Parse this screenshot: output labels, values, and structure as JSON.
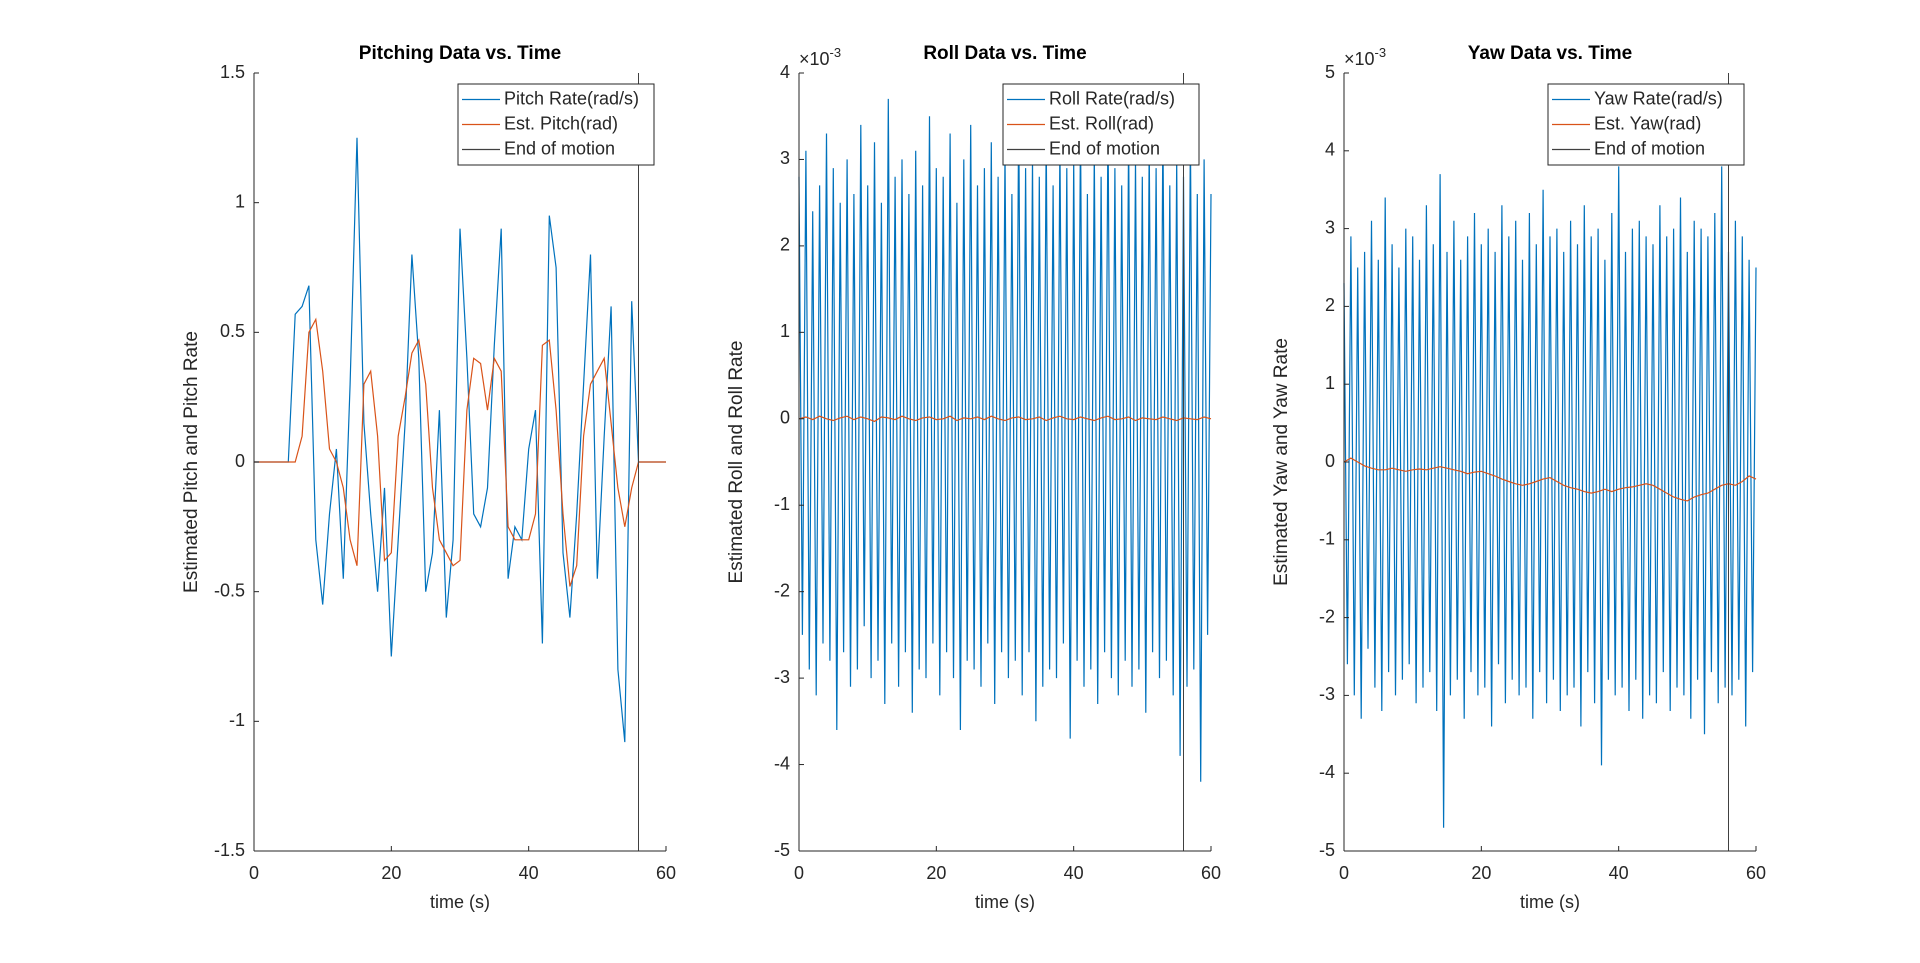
{
  "chart_data": [
    {
      "type": "line",
      "title": "Pitching Data vs. Time",
      "x_label": "time (s)",
      "y_label": "Estimated Pitch and Pitch Rate",
      "xlim": [
        0,
        60
      ],
      "xticks": [
        0,
        20,
        40,
        60
      ],
      "ylim": [
        -1.5,
        1.5
      ],
      "yticks": [
        -1.5,
        -1,
        -0.5,
        0,
        0.5,
        1,
        1.5
      ],
      "legend": "upper right",
      "x": [
        0,
        1,
        2,
        3,
        4,
        5,
        6,
        7,
        8,
        9,
        10,
        11,
        12,
        13,
        14,
        15,
        16,
        17,
        18,
        19,
        20,
        21,
        22,
        23,
        24,
        25,
        26,
        27,
        28,
        29,
        30,
        31,
        32,
        33,
        34,
        35,
        36,
        37,
        38,
        39,
        40,
        41,
        42,
        43,
        44,
        45,
        46,
        47,
        48,
        49,
        50,
        51,
        52,
        53,
        54,
        55,
        56,
        57,
        58,
        59,
        60
      ],
      "series": [
        {
          "name": "Pitch Rate(rad/s)",
          "color": "#0072BD",
          "values": [
            0,
            0,
            0,
            0,
            0,
            0,
            0.57,
            0.6,
            0.68,
            -0.3,
            -0.55,
            -0.2,
            0.05,
            -0.45,
            0.3,
            1.25,
            0.15,
            -0.2,
            -0.5,
            -0.1,
            -0.75,
            -0.3,
            0.15,
            0.8,
            0.4,
            -0.5,
            -0.35,
            0.2,
            -0.6,
            -0.3,
            0.9,
            0.4,
            -0.2,
            -0.25,
            -0.1,
            0.45,
            0.9,
            -0.45,
            -0.25,
            -0.3,
            0.05,
            0.2,
            -0.7,
            0.95,
            0.75,
            -0.35,
            -0.6,
            -0.2,
            0.3,
            0.8,
            -0.45,
            0.1,
            0.6,
            -0.8,
            -1.08,
            0.62,
            0,
            0,
            0,
            0,
            0
          ]
        },
        {
          "name": "Est. Pitch(rad)",
          "color": "#D95319",
          "values": [
            0,
            0,
            0,
            0,
            0,
            0,
            0,
            0.1,
            0.5,
            0.55,
            0.35,
            0.05,
            0,
            -0.1,
            -0.3,
            -0.4,
            0.3,
            0.35,
            0.1,
            -0.38,
            -0.35,
            0.1,
            0.25,
            0.42,
            0.47,
            0.3,
            -0.1,
            -0.3,
            -0.35,
            -0.4,
            -0.38,
            0.2,
            0.4,
            0.38,
            0.2,
            0.4,
            0.35,
            -0.25,
            -0.3,
            -0.3,
            -0.3,
            -0.2,
            0.45,
            0.47,
            0.2,
            -0.2,
            -0.48,
            -0.4,
            0.1,
            0.3,
            0.35,
            0.4,
            0.15,
            -0.1,
            -0.25,
            -0.1,
            0,
            0,
            0,
            0,
            0
          ]
        },
        {
          "name": "End of motion",
          "color": "#404040",
          "x": [
            56,
            56
          ],
          "values": [
            -1.5,
            1.5
          ]
        }
      ]
    },
    {
      "type": "line",
      "title": "Roll Data vs. Time",
      "x_label": "time (s)",
      "y_label": "Estimated Roll and Roll Rate",
      "exponent_label": {
        "base": "×10",
        "power": "-3"
      },
      "xlim": [
        0,
        60
      ],
      "xticks": [
        0,
        20,
        40,
        60
      ],
      "ylim": [
        -5,
        4
      ],
      "yticks": [
        -5,
        -4,
        -3,
        -2,
        -1,
        0,
        1,
        2,
        3,
        4
      ],
      "legend": "upper right",
      "x": [
        0,
        1,
        2,
        3,
        4,
        5,
        6,
        7,
        8,
        9,
        10,
        11,
        12,
        13,
        14,
        15,
        16,
        17,
        18,
        19,
        20,
        21,
        22,
        23,
        24,
        25,
        26,
        27,
        28,
        29,
        30,
        31,
        32,
        33,
        34,
        35,
        36,
        37,
        38,
        39,
        40,
        41,
        42,
        43,
        44,
        45,
        46,
        47,
        48,
        49,
        50,
        51,
        52,
        53,
        54,
        55,
        56,
        57,
        58,
        59,
        60
      ],
      "series": [
        {
          "name": "Roll Rate(rad/s)",
          "color": "#0072BD",
          "x": [
            0,
            0.5,
            1,
            1.5,
            2,
            2.5,
            3,
            3.5,
            4,
            4.5,
            5,
            5.5,
            6,
            6.5,
            7,
            7.5,
            8,
            8.5,
            9,
            9.5,
            10,
            10.5,
            11,
            11.5,
            12,
            12.5,
            13,
            13.5,
            14,
            14.5,
            15,
            15.5,
            16,
            16.5,
            17,
            17.5,
            18,
            18.5,
            19,
            19.5,
            20,
            20.5,
            21,
            21.5,
            22,
            22.5,
            23,
            23.5,
            24,
            24.5,
            25,
            25.5,
            26,
            26.5,
            27,
            27.5,
            28,
            28.5,
            29,
            29.5,
            30,
            30.5,
            31,
            31.5,
            32,
            32.5,
            33,
            33.5,
            34,
            34.5,
            35,
            35.5,
            36,
            36.5,
            37,
            37.5,
            38,
            38.5,
            39,
            39.5,
            40,
            40.5,
            41,
            41.5,
            42,
            42.5,
            43,
            43.5,
            44,
            44.5,
            45,
            45.5,
            46,
            46.5,
            47,
            47.5,
            48,
            48.5,
            49,
            49.5,
            50,
            50.5,
            51,
            51.5,
            52,
            52.5,
            53,
            53.5,
            54,
            54.5,
            55,
            55.5,
            56,
            56.5,
            57,
            57.5,
            58,
            58.5,
            59,
            59.5,
            60
          ],
          "values": [
            2.8,
            -2.5,
            3.1,
            -2.9,
            2.4,
            -3.2,
            2.7,
            -2.6,
            3.3,
            -2.8,
            2.9,
            -3.6,
            2.5,
            -2.7,
            3.0,
            -3.1,
            2.6,
            -2.9,
            3.4,
            -2.4,
            2.7,
            -3.0,
            3.2,
            -2.8,
            2.5,
            -3.3,
            3.7,
            -2.6,
            2.8,
            -3.1,
            3.0,
            -2.7,
            2.6,
            -3.4,
            3.1,
            -2.9,
            2.7,
            -3.0,
            3.5,
            -2.6,
            2.9,
            -3.2,
            2.8,
            -2.7,
            3.3,
            -3.0,
            2.5,
            -3.6,
            3.0,
            -2.8,
            3.4,
            -2.9,
            2.7,
            -3.1,
            2.9,
            -2.6,
            3.2,
            -3.3,
            2.8,
            -2.7,
            3.1,
            -3.0,
            2.6,
            -2.8,
            3.6,
            -3.2,
            2.9,
            -2.7,
            3.0,
            -3.5,
            2.8,
            -3.1,
            3.3,
            -2.9,
            2.7,
            -3.0,
            3.2,
            -2.6,
            2.9,
            -3.7,
            3.0,
            -2.8,
            3.4,
            -3.1,
            2.6,
            -2.9,
            3.1,
            -3.3,
            2.8,
            -2.7,
            3.5,
            -3.0,
            2.9,
            -3.2,
            2.7,
            -2.8,
            3.3,
            -3.1,
            3.0,
            -2.9,
            2.8,
            -3.4,
            3.2,
            -2.7,
            2.9,
            -3.0,
            3.4,
            -2.8,
            2.7,
            -3.2,
            3.0,
            -3.9,
            2.8,
            -3.1,
            3.3,
            -2.9,
            2.6,
            -4.2,
            3.0,
            -2.5,
            2.6
          ]
        },
        {
          "name": "Est. Roll(rad)",
          "color": "#D95319",
          "values": [
            0,
            0.02,
            -0.01,
            0.03,
            0,
            -0.02,
            0.01,
            0.03,
            -0.01,
            0.02,
            0,
            -0.03,
            0.02,
            0.01,
            -0.01,
            0.03,
            0,
            -0.02,
            0.01,
            0.02,
            -0.01,
            0,
            0.03,
            -0.02,
            0.01,
            0,
            0.02,
            -0.01,
            0.03,
            0,
            -0.02,
            0.01,
            0.02,
            -0.01,
            0,
            0.02,
            -0.02,
            0.01,
            0.03,
            0,
            -0.01,
            0.02,
            0,
            -0.02,
            0.01,
            0.03,
            -0.01,
            0,
            0.02,
            -0.02,
            0.01,
            0,
            -0.01,
            0.02,
            0,
            -0.02,
            0.01,
            0,
            -0.01,
            0.02,
            0
          ]
        },
        {
          "name": "End of motion",
          "color": "#404040",
          "x": [
            56,
            56
          ],
          "values": [
            -5,
            4
          ]
        }
      ]
    },
    {
      "type": "line",
      "title": "Yaw Data vs. Time",
      "x_label": "time (s)",
      "y_label": "Estimated Yaw and Yaw Rate",
      "exponent_label": {
        "base": "×10",
        "power": "-3"
      },
      "xlim": [
        0,
        60
      ],
      "xticks": [
        0,
        20,
        40,
        60
      ],
      "ylim": [
        -5,
        5
      ],
      "yticks": [
        -5,
        -4,
        -3,
        -2,
        -1,
        0,
        1,
        2,
        3,
        4,
        5
      ],
      "legend": "upper right",
      "x": [
        0,
        1,
        2,
        3,
        4,
        5,
        6,
        7,
        8,
        9,
        10,
        11,
        12,
        13,
        14,
        15,
        16,
        17,
        18,
        19,
        20,
        21,
        22,
        23,
        24,
        25,
        26,
        27,
        28,
        29,
        30,
        31,
        32,
        33,
        34,
        35,
        36,
        37,
        38,
        39,
        40,
        41,
        42,
        43,
        44,
        45,
        46,
        47,
        48,
        49,
        50,
        51,
        52,
        53,
        54,
        55,
        56,
        57,
        58,
        59,
        60
      ],
      "series": [
        {
          "name": "Yaw Rate(rad/s)",
          "color": "#0072BD",
          "x": [
            0,
            0.5,
            1,
            1.5,
            2,
            2.5,
            3,
            3.5,
            4,
            4.5,
            5,
            5.5,
            6,
            6.5,
            7,
            7.5,
            8,
            8.5,
            9,
            9.5,
            10,
            10.5,
            11,
            11.5,
            12,
            12.5,
            13,
            13.5,
            14,
            14.5,
            15,
            15.5,
            16,
            16.5,
            17,
            17.5,
            18,
            18.5,
            19,
            19.5,
            20,
            20.5,
            21,
            21.5,
            22,
            22.5,
            23,
            23.5,
            24,
            24.5,
            25,
            25.5,
            26,
            26.5,
            27,
            27.5,
            28,
            28.5,
            29,
            29.5,
            30,
            30.5,
            31,
            31.5,
            32,
            32.5,
            33,
            33.5,
            34,
            34.5,
            35,
            35.5,
            36,
            36.5,
            37,
            37.5,
            38,
            38.5,
            39,
            39.5,
            40,
            40.5,
            41,
            41.5,
            42,
            42.5,
            43,
            43.5,
            44,
            44.5,
            45,
            45.5,
            46,
            46.5,
            47,
            47.5,
            48,
            48.5,
            49,
            49.5,
            50,
            50.5,
            51,
            51.5,
            52,
            52.5,
            53,
            53.5,
            54,
            54.5,
            55,
            55.5,
            56,
            56.5,
            57,
            57.5,
            58,
            58.5,
            59,
            59.5,
            60
          ],
          "values": [
            2.3,
            -2.6,
            2.9,
            -3.0,
            2.5,
            -3.3,
            2.7,
            -2.4,
            3.1,
            -2.9,
            2.6,
            -3.2,
            3.4,
            -2.7,
            2.8,
            -3.0,
            2.5,
            -2.8,
            3.0,
            -2.6,
            2.9,
            -3.1,
            2.6,
            -2.9,
            3.3,
            -2.7,
            2.8,
            -3.2,
            3.7,
            -4.7,
            2.7,
            -3.0,
            3.1,
            -2.8,
            2.6,
            -3.3,
            2.9,
            -2.7,
            3.2,
            -3.0,
            2.8,
            -2.9,
            3.0,
            -3.4,
            2.7,
            -2.6,
            3.3,
            -3.1,
            2.9,
            -2.8,
            3.1,
            -3.0,
            2.6,
            -2.9,
            3.2,
            -3.3,
            2.8,
            -2.7,
            3.5,
            -3.1,
            2.9,
            -2.8,
            3.0,
            -3.2,
            2.7,
            -3.0,
            3.1,
            -2.9,
            2.8,
            -3.4,
            3.3,
            -2.7,
            2.9,
            -3.1,
            3.0,
            -3.9,
            2.6,
            -2.8,
            3.2,
            -3.0,
            3.8,
            -2.9,
            2.7,
            -3.2,
            3.0,
            -2.8,
            3.1,
            -3.3,
            2.9,
            -3.0,
            2.8,
            -3.1,
            3.3,
            -2.7,
            2.9,
            -3.2,
            3.0,
            -2.9,
            3.4,
            -3.0,
            2.7,
            -3.3,
            3.1,
            -2.8,
            3.0,
            -3.5,
            2.9,
            -2.7,
            3.2,
            -3.1,
            3.8,
            -2.9,
            2.7,
            -3.0,
            3.1,
            -2.8,
            2.9,
            -3.4,
            2.6,
            -2.7,
            2.5
          ]
        },
        {
          "name": "Est. Yaw(rad)",
          "color": "#D95319",
          "values": [
            0,
            0.05,
            0,
            -0.05,
            -0.08,
            -0.1,
            -0.1,
            -0.08,
            -0.1,
            -0.12,
            -0.1,
            -0.09,
            -0.1,
            -0.08,
            -0.06,
            -0.08,
            -0.1,
            -0.12,
            -0.15,
            -0.13,
            -0.12,
            -0.15,
            -0.18,
            -0.22,
            -0.25,
            -0.28,
            -0.3,
            -0.28,
            -0.25,
            -0.22,
            -0.2,
            -0.25,
            -0.3,
            -0.33,
            -0.35,
            -0.38,
            -0.4,
            -0.38,
            -0.35,
            -0.38,
            -0.35,
            -0.33,
            -0.32,
            -0.3,
            -0.28,
            -0.3,
            -0.35,
            -0.4,
            -0.45,
            -0.48,
            -0.5,
            -0.45,
            -0.42,
            -0.4,
            -0.35,
            -0.3,
            -0.28,
            -0.3,
            -0.25,
            -0.18,
            -0.22
          ]
        },
        {
          "name": "End of motion",
          "color": "#404040",
          "x": [
            56,
            56
          ],
          "values": [
            -5,
            5
          ]
        }
      ]
    }
  ]
}
